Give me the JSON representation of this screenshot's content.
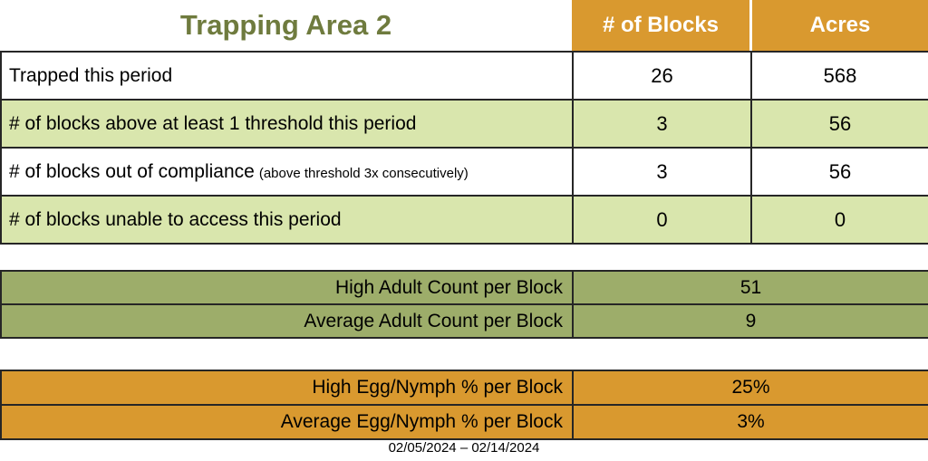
{
  "title": "Trapping Area 2",
  "columns": {
    "blocks": "# of Blocks",
    "acres": "Acres"
  },
  "main_table": {
    "rows": [
      {
        "label": "Trapped this period",
        "blocks": "26",
        "acres": "568"
      },
      {
        "label": "# of blocks above at least 1 threshold this period",
        "blocks": "3",
        "acres": "56"
      },
      {
        "label": "# of blocks out of compliance",
        "note": "(above threshold 3x consecutively)",
        "blocks": "3",
        "acres": "56"
      },
      {
        "label": "# of blocks unable to access this period",
        "blocks": "0",
        "acres": "0"
      }
    ]
  },
  "adult_counts": {
    "rows": [
      {
        "label": "High Adult Count per Block",
        "value": "51"
      },
      {
        "label": "Average Adult Count per Block",
        "value": "9"
      }
    ]
  },
  "egg_nymph": {
    "rows": [
      {
        "label": "High Egg/Nymph % per Block",
        "value": "25%"
      },
      {
        "label": "Average Egg/Nymph % per Block",
        "value": "3%"
      }
    ]
  },
  "footer": {
    "date_range": "02/05/2024 – 02/14/2024"
  },
  "colors": {
    "accent_orange": "#D9992F",
    "light_green": "#D9E6AD",
    "olive_green": "#9DAD6A",
    "title_green": "#6F7B3E",
    "border": "#262626"
  }
}
